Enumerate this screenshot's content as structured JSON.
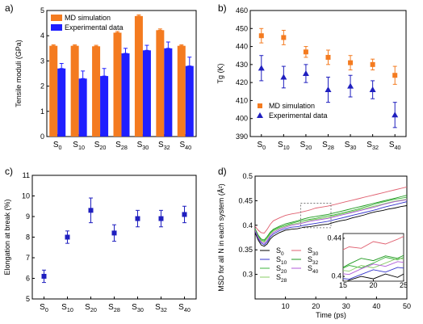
{
  "chart_data": [
    {
      "panel": "a)",
      "type": "bar",
      "ylabel": "Tensile moduli (GPa)",
      "ylim": [
        0,
        5
      ],
      "yticks": [
        0,
        1,
        2,
        3,
        4,
        5
      ],
      "categories": [
        {
          "base": "S",
          "sub": "0"
        },
        {
          "base": "S",
          "sub": "10"
        },
        {
          "base": "S",
          "sub": "20"
        },
        {
          "base": "S",
          "sub": "28"
        },
        {
          "base": "S",
          "sub": "30"
        },
        {
          "base": "S",
          "sub": "32"
        },
        {
          "base": "S",
          "sub": "40"
        }
      ],
      "series": [
        {
          "name": "MD simulation",
          "color": "#f47b20",
          "values": [
            3.6,
            3.6,
            3.58,
            4.12,
            4.78,
            4.22,
            3.6
          ],
          "errors": [
            0.04,
            0.04,
            0.04,
            0.05,
            0.05,
            0.05,
            0.04
          ]
        },
        {
          "name": "Experimental data",
          "color": "#1f1fff",
          "values": [
            2.7,
            2.3,
            2.4,
            3.3,
            3.42,
            3.5,
            2.8
          ],
          "errors": [
            0.2,
            0.3,
            0.3,
            0.2,
            0.2,
            0.25,
            0.35
          ]
        }
      ],
      "legend": "top-left"
    },
    {
      "panel": "b)",
      "type": "scatter",
      "ylabel": "Tg (K)",
      "ylim": [
        390,
        460
      ],
      "yticks": [
        390,
        400,
        410,
        420,
        430,
        440,
        450,
        460
      ],
      "categories": [
        {
          "base": "S",
          "sub": "0"
        },
        {
          "base": "S",
          "sub": "10"
        },
        {
          "base": "S",
          "sub": "20"
        },
        {
          "base": "S",
          "sub": "28"
        },
        {
          "base": "S",
          "sub": "30"
        },
        {
          "base": "S",
          "sub": "32"
        },
        {
          "base": "S",
          "sub": "40"
        }
      ],
      "series": [
        {
          "name": "MD simulation",
          "color": "#f47b20",
          "marker": "square",
          "values": [
            446,
            445,
            437,
            434,
            431,
            430,
            424
          ],
          "errors": [
            4,
            4,
            3,
            4,
            4,
            3,
            5
          ]
        },
        {
          "name": "Experimental data",
          "color": "#1f1fbf",
          "marker": "triangle",
          "values": [
            428,
            423,
            425,
            416,
            418,
            416,
            402
          ],
          "errors": [
            7,
            6,
            5,
            7,
            6,
            5,
            7
          ]
        }
      ],
      "legend": "bottom-left"
    },
    {
      "panel": "c)",
      "type": "scatter",
      "ylabel": "Elongation at break  (%)",
      "ylim": [
        5,
        11
      ],
      "yticks": [
        5,
        6,
        7,
        8,
        9,
        10,
        11
      ],
      "categories": [
        {
          "base": "S",
          "sub": "0"
        },
        {
          "base": "S",
          "sub": "10"
        },
        {
          "base": "S",
          "sub": "20"
        },
        {
          "base": "S",
          "sub": "28"
        },
        {
          "base": "S",
          "sub": "30"
        },
        {
          "base": "S",
          "sub": "32"
        },
        {
          "base": "S",
          "sub": "40"
        }
      ],
      "series": [
        {
          "color": "#1f1fbf",
          "marker": "square",
          "values": [
            6.1,
            8.0,
            9.3,
            8.2,
            8.9,
            8.9,
            9.1
          ],
          "errors": [
            0.3,
            0.3,
            0.6,
            0.4,
            0.4,
            0.4,
            0.4
          ]
        }
      ]
    },
    {
      "panel": "d)",
      "type": "line",
      "xlabel": "Time (ps)",
      "ylabel": "MSD for all N in each system (Å²)",
      "xlim": [
        0,
        50
      ],
      "ylim": [
        0.25,
        0.5
      ],
      "xticks": [
        10,
        20,
        30,
        40,
        50
      ],
      "yticks": [
        0.3,
        0.35,
        0.4,
        0.45,
        0.5
      ],
      "ytick_labels": [
        "0.3",
        "0.35",
        "0.4",
        "0.45",
        "0.5"
      ],
      "x": [
        0,
        1,
        2,
        3,
        4,
        5,
        6,
        8,
        10,
        12,
        14,
        16,
        18,
        20,
        22,
        24,
        26,
        28,
        30,
        32,
        34,
        36,
        38,
        40,
        42,
        44,
        46,
        48,
        50
      ],
      "series": [
        {
          "base": "S",
          "sub": "0",
          "color": "#000000",
          "values": [
            0.385,
            0.37,
            0.36,
            0.357,
            0.362,
            0.372,
            0.378,
            0.385,
            0.39,
            0.392,
            0.393,
            0.396,
            0.397,
            0.399,
            0.401,
            0.402,
            0.406,
            0.409,
            0.411,
            0.415,
            0.418,
            0.421,
            0.425,
            0.428,
            0.43,
            0.433,
            0.435,
            0.438,
            0.44
          ]
        },
        {
          "base": "S",
          "sub": "10",
          "color": "#3333cc",
          "values": [
            0.388,
            0.373,
            0.364,
            0.36,
            0.366,
            0.376,
            0.382,
            0.389,
            0.393,
            0.396,
            0.397,
            0.4,
            0.402,
            0.404,
            0.406,
            0.408,
            0.411,
            0.414,
            0.417,
            0.42,
            0.423,
            0.426,
            0.429,
            0.432,
            0.436,
            0.439,
            0.442,
            0.445,
            0.448
          ]
        },
        {
          "base": "S",
          "sub": "20",
          "color": "#3cb43c",
          "values": [
            0.392,
            0.378,
            0.37,
            0.368,
            0.374,
            0.384,
            0.39,
            0.396,
            0.4,
            0.404,
            0.407,
            0.41,
            0.412,
            0.414,
            0.417,
            0.419,
            0.421,
            0.424,
            0.427,
            0.43,
            0.433,
            0.437,
            0.44,
            0.444,
            0.447,
            0.45,
            0.453,
            0.455,
            0.457
          ]
        },
        {
          "base": "S",
          "sub": "28",
          "color": "#88cc66",
          "values": [
            0.39,
            0.376,
            0.368,
            0.366,
            0.373,
            0.382,
            0.388,
            0.394,
            0.398,
            0.402,
            0.404,
            0.407,
            0.41,
            0.412,
            0.414,
            0.416,
            0.419,
            0.422,
            0.425,
            0.428,
            0.431,
            0.434,
            0.437,
            0.44,
            0.443,
            0.446,
            0.449,
            0.451,
            0.453
          ]
        },
        {
          "base": "S",
          "sub": "30",
          "color": "#e06070",
          "values": [
            0.398,
            0.39,
            0.385,
            0.384,
            0.392,
            0.402,
            0.409,
            0.415,
            0.42,
            0.423,
            0.425,
            0.428,
            0.431,
            0.435,
            0.437,
            0.439,
            0.442,
            0.445,
            0.448,
            0.451,
            0.454,
            0.457,
            0.46,
            0.463,
            0.466,
            0.469,
            0.472,
            0.475,
            0.478
          ]
        },
        {
          "base": "S",
          "sub": "32",
          "color": "#1f9a1f",
          "values": [
            0.393,
            0.38,
            0.372,
            0.37,
            0.377,
            0.386,
            0.392,
            0.398,
            0.403,
            0.406,
            0.409,
            0.413,
            0.416,
            0.418,
            0.42,
            0.422,
            0.425,
            0.428,
            0.431,
            0.434,
            0.437,
            0.44,
            0.443,
            0.446,
            0.449,
            0.452,
            0.455,
            0.458,
            0.461
          ]
        },
        {
          "base": "S",
          "sub": "40",
          "color": "#b05ad8",
          "values": [
            0.39,
            0.375,
            0.366,
            0.363,
            0.369,
            0.379,
            0.385,
            0.392,
            0.396,
            0.4,
            0.402,
            0.405,
            0.408,
            0.41,
            0.412,
            0.414,
            0.417,
            0.42,
            0.423,
            0.426,
            0.429,
            0.432,
            0.435,
            0.438,
            0.442,
            0.445,
            0.448,
            0.45,
            0.452
          ]
        }
      ],
      "inset": {
        "xlim": [
          15,
          25
        ],
        "ylim": [
          0.395,
          0.445
        ],
        "xticks": [
          15,
          20,
          25
        ],
        "yticks": [
          0.4,
          0.44
        ],
        "ytick_labels": [
          "0.4",
          "0.44"
        ],
        "zoom_box": {
          "x": [
            15,
            25
          ],
          "y": [
            0.395,
            0.445
          ]
        }
      }
    }
  ]
}
